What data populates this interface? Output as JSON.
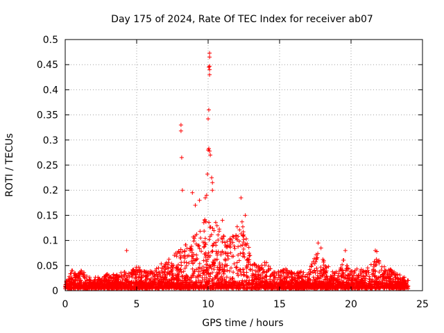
{
  "chart_data": {
    "type": "scatter",
    "title": "Day 175 of 2024, Rate Of TEC Index for receiver ab07",
    "xlabel": "GPS time / hours",
    "ylabel": "ROTI / TECUs",
    "xlim": [
      0,
      25
    ],
    "ylim": [
      0,
      0.5
    ],
    "xticks": [
      "0",
      "5",
      "10",
      "15",
      "20",
      "25"
    ],
    "yticks": [
      "0",
      "0.05",
      "0.1",
      "0.15",
      "0.2",
      "0.25",
      "0.3",
      "0.35",
      "0.4",
      "0.45",
      "0.5"
    ],
    "grid": true,
    "marker": "+",
    "color": "#ff0000",
    "envelope": [
      [
        0.0,
        0.018
      ],
      [
        0.3,
        0.025
      ],
      [
        0.5,
        0.04
      ],
      [
        0.8,
        0.028
      ],
      [
        1.2,
        0.038
      ],
      [
        1.5,
        0.026
      ],
      [
        2.0,
        0.022
      ],
      [
        2.5,
        0.026
      ],
      [
        3.0,
        0.03
      ],
      [
        3.5,
        0.028
      ],
      [
        4.0,
        0.035
      ],
      [
        4.5,
        0.032
      ],
      [
        5.0,
        0.045
      ],
      [
        5.5,
        0.038
      ],
      [
        6.0,
        0.035
      ],
      [
        6.5,
        0.045
      ],
      [
        7.0,
        0.06
      ],
      [
        7.5,
        0.065
      ],
      [
        8.0,
        0.08
      ],
      [
        8.3,
        0.095
      ],
      [
        8.8,
        0.1
      ],
      [
        9.2,
        0.115
      ],
      [
        9.6,
        0.13
      ],
      [
        10.0,
        0.15
      ],
      [
        10.4,
        0.14
      ],
      [
        10.8,
        0.12
      ],
      [
        11.2,
        0.1
      ],
      [
        11.6,
        0.1
      ],
      [
        12.0,
        0.13
      ],
      [
        12.3,
        0.15
      ],
      [
        12.7,
        0.1
      ],
      [
        13.0,
        0.07
      ],
      [
        13.5,
        0.045
      ],
      [
        14.0,
        0.055
      ],
      [
        14.5,
        0.04
      ],
      [
        15.0,
        0.035
      ],
      [
        15.5,
        0.04
      ],
      [
        16.0,
        0.035
      ],
      [
        16.5,
        0.035
      ],
      [
        17.0,
        0.03
      ],
      [
        17.4,
        0.06
      ],
      [
        17.8,
        0.08
      ],
      [
        18.2,
        0.05
      ],
      [
        18.6,
        0.04
      ],
      [
        19.0,
        0.035
      ],
      [
        19.5,
        0.06
      ],
      [
        20.0,
        0.035
      ],
      [
        20.5,
        0.04
      ],
      [
        21.0,
        0.04
      ],
      [
        21.5,
        0.05
      ],
      [
        21.8,
        0.07
      ],
      [
        22.2,
        0.045
      ],
      [
        22.7,
        0.04
      ],
      [
        23.2,
        0.03
      ],
      [
        23.6,
        0.025
      ],
      [
        24.0,
        0.02
      ]
    ],
    "outliers": [
      [
        4.3,
        0.08
      ],
      [
        8.1,
        0.33
      ],
      [
        8.1,
        0.318
      ],
      [
        8.15,
        0.265
      ],
      [
        8.2,
        0.2
      ],
      [
        8.9,
        0.195
      ],
      [
        9.1,
        0.17
      ],
      [
        9.4,
        0.18
      ],
      [
        9.8,
        0.185
      ],
      [
        9.9,
        0.19
      ],
      [
        9.95,
        0.232
      ],
      [
        10.0,
        0.28
      ],
      [
        10.05,
        0.283
      ],
      [
        10.1,
        0.278
      ],
      [
        10.15,
        0.27
      ],
      [
        10.0,
        0.342
      ],
      [
        10.05,
        0.36
      ],
      [
        10.1,
        0.44
      ],
      [
        10.05,
        0.445
      ],
      [
        10.1,
        0.43
      ],
      [
        10.1,
        0.447
      ],
      [
        10.1,
        0.473
      ],
      [
        10.1,
        0.465
      ],
      [
        10.25,
        0.225
      ],
      [
        10.3,
        0.215
      ],
      [
        10.3,
        0.2
      ],
      [
        11.0,
        0.14
      ],
      [
        12.3,
        0.185
      ],
      [
        12.6,
        0.15
      ],
      [
        17.7,
        0.095
      ],
      [
        17.9,
        0.085
      ],
      [
        19.6,
        0.08
      ],
      [
        21.7,
        0.08
      ],
      [
        21.8,
        0.078
      ],
      [
        0.5,
        0.04
      ]
    ]
  }
}
